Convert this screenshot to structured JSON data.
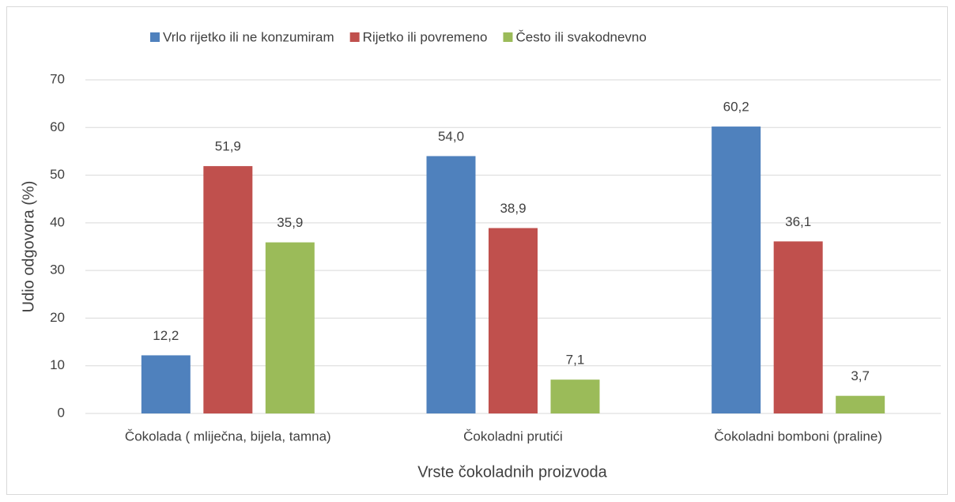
{
  "chart_data": {
    "type": "bar",
    "categories": [
      "Čokolada ( mliječna, bijela, tamna)",
      "Čokoladni prutići",
      "Čokoladni bomboni (praline)"
    ],
    "series": [
      {
        "name": "Vrlo rijetko ili ne konzumiram",
        "color": "#4f81bd",
        "values": [
          12.2,
          54.0,
          60.2
        ],
        "value_labels": [
          "12,2",
          "54,0",
          "60,2"
        ]
      },
      {
        "name": "Rijetko ili povremeno",
        "color": "#c0504d",
        "values": [
          51.9,
          38.9,
          36.1
        ],
        "value_labels": [
          "51,9",
          "38,9",
          "36,1"
        ]
      },
      {
        "name": "Često ili svakodnevno",
        "color": "#9bbb59",
        "values": [
          35.9,
          7.1,
          3.7
        ],
        "value_labels": [
          "35,9",
          "7,1",
          "3,7"
        ]
      }
    ],
    "x_label": "Vrste čokoladnih proizvoda",
    "y_label": "Udio odgovora (%)",
    "ylim": [
      0,
      70
    ],
    "yticks": [
      0,
      10,
      20,
      30,
      40,
      50,
      60,
      70
    ],
    "grid": true,
    "legend": "top"
  }
}
